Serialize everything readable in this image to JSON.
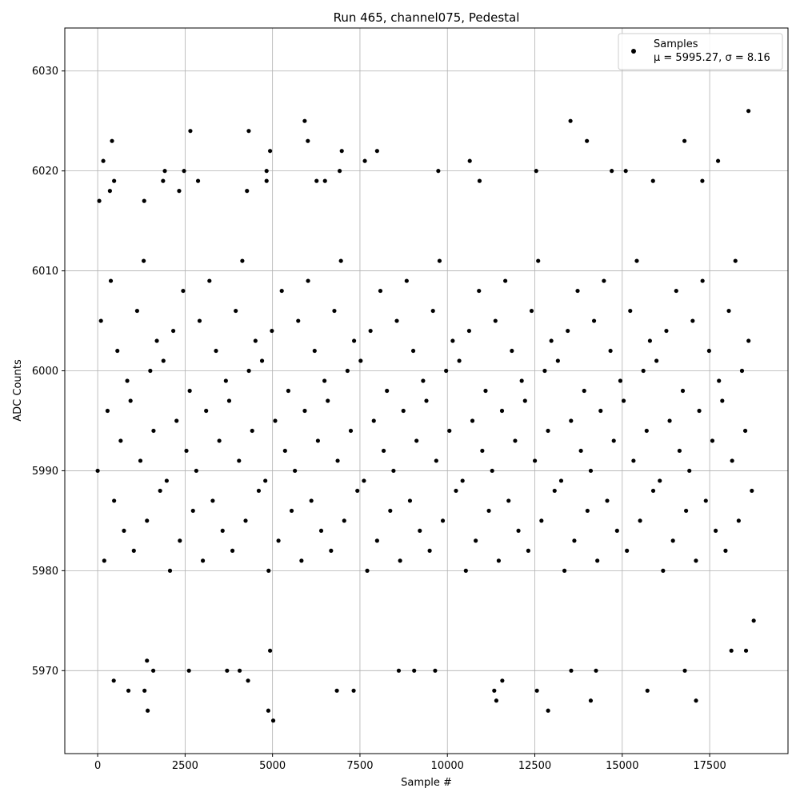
{
  "chart_data": {
    "type": "scatter",
    "title": "Run 465, channel075, Pedestal",
    "x_label": "Sample #",
    "y_label": "ADC Counts",
    "xlim": [
      -940,
      19740
    ],
    "ylim": [
      5961.7,
      6034.3
    ],
    "xticks": [
      0,
      2500,
      5000,
      7500,
      10000,
      12500,
      15000,
      17500
    ],
    "yticks": [
      5970,
      5980,
      5990,
      6000,
      6010,
      6020,
      6030
    ],
    "grid": true,
    "legend_position": "upper right",
    "series": [
      {
        "name": "Samples",
        "legend_note": "μ = 5995.27, σ = 8.16",
        "color": "#000000",
        "x": [
          0,
          94,
          188,
          282,
          376,
          470,
          564,
          658,
          752,
          846,
          940,
          1034,
          1128,
          1222,
          1316,
          1410,
          1504,
          1598,
          1692,
          1786,
          1880,
          1974,
          2068,
          2162,
          2256,
          2350,
          2444,
          2538,
          2632,
          2726,
          2820,
          2914,
          3008,
          3102,
          3196,
          3290,
          3384,
          3478,
          3572,
          3666,
          3760,
          3854,
          3948,
          4042,
          4136,
          4230,
          4324,
          4418,
          4512,
          4606,
          4700,
          4794,
          4888,
          4982,
          5076,
          5170,
          5264,
          5358,
          5452,
          5546,
          5640,
          5734,
          5828,
          5922,
          6016,
          6110,
          6204,
          6298,
          6392,
          6486,
          6580,
          6674,
          6768,
          6862,
          6956,
          7050,
          7144,
          7238,
          7332,
          7426,
          7520,
          7614,
          7708,
          7802,
          7896,
          7990,
          8084,
          8178,
          8272,
          8366,
          8460,
          8554,
          8648,
          8742,
          8836,
          8930,
          9024,
          9118,
          9212,
          9306,
          9400,
          9494,
          9588,
          9682,
          9776,
          9870,
          9964,
          10058,
          10152,
          10246,
          10340,
          10434,
          10528,
          10622,
          10716,
          10810,
          10904,
          10998,
          11092,
          11186,
          11280,
          11374,
          11468,
          11562,
          11656,
          11750,
          11844,
          11938,
          12032,
          12126,
          12220,
          12314,
          12408,
          12502,
          12596,
          12690,
          12784,
          12878,
          12972,
          13066,
          13160,
          13254,
          13348,
          13442,
          13536,
          13630,
          13724,
          13818,
          13912,
          14006,
          14100,
          14194,
          14288,
          14382,
          14476,
          14570,
          14664,
          14758,
          14852,
          14946,
          15040,
          15134,
          15228,
          15322,
          15416,
          15510,
          15604,
          15698,
          15792,
          15886,
          15980,
          16074,
          16168,
          16262,
          16356,
          16450,
          16544,
          16638,
          16732,
          16826,
          16920,
          17014,
          17108,
          17202,
          17296,
          17390,
          17484,
          17578,
          17672,
          17766,
          17860,
          17954,
          18048,
          18142,
          18236,
          18330,
          18424,
          18518,
          18612,
          18706,
          45,
          160,
          410,
          470,
          350,
          1330,
          1870,
          1920,
          2470,
          2330,
          2650,
          2870,
          4320,
          4270,
          4830,
          4830,
          4930,
          5920,
          6010,
          6260,
          6500,
          6920,
          6980,
          7640,
          7990,
          9740,
          10640,
          10920,
          12540,
          13520,
          13990,
          14700,
          15100,
          15880,
          16780,
          17290,
          17740,
          18610,
          460,
          880,
          1340,
          1430,
          1410,
          1590,
          2610,
          3700,
          4060,
          4300,
          4880,
          5020,
          4930,
          6840,
          7320,
          8610,
          9050,
          9650,
          11340,
          11400,
          11570,
          12560,
          12880,
          14100,
          14250,
          13540,
          15720,
          16790,
          17110,
          18120,
          18540,
          18760
        ],
        "values": [
          5990,
          6005,
          5981,
          5996,
          6009,
          5987,
          6002,
          5993,
          5984,
          5999,
          5997,
          5982,
          6006,
          5991,
          6011,
          5985,
          6000,
          5994,
          6003,
          5988,
          6001,
          5989,
          5980,
          6004,
          5995,
          5983,
          6008,
          5992,
          5998,
          5986,
          5990,
          6005,
          5981,
          5996,
          6009,
          5987,
          6002,
          5993,
          5984,
          5999,
          5997,
          5982,
          6006,
          5991,
          6011,
          5985,
          6000,
          5994,
          6003,
          5988,
          6001,
          5989,
          5980,
          6004,
          5995,
          5983,
          6008,
          5992,
          5998,
          5986,
          5990,
          6005,
          5981,
          5996,
          6009,
          5987,
          6002,
          5993,
          5984,
          5999,
          5997,
          5982,
          6006,
          5991,
          6011,
          5985,
          6000,
          5994,
          6003,
          5988,
          6001,
          5989,
          5980,
          6004,
          5995,
          5983,
          6008,
          5992,
          5998,
          5986,
          5990,
          6005,
          5981,
          5996,
          6009,
          5987,
          6002,
          5993,
          5984,
          5999,
          5997,
          5982,
          6006,
          5991,
          6011,
          5985,
          6000,
          5994,
          6003,
          5988,
          6001,
          5989,
          5980,
          6004,
          5995,
          5983,
          6008,
          5992,
          5998,
          5986,
          5990,
          6005,
          5981,
          5996,
          6009,
          5987,
          6002,
          5993,
          5984,
          5999,
          5997,
          5982,
          6006,
          5991,
          6011,
          5985,
          6000,
          5994,
          6003,
          5988,
          6001,
          5989,
          5980,
          6004,
          5995,
          5983,
          6008,
          5992,
          5998,
          5986,
          5990,
          6005,
          5981,
          5996,
          6009,
          5987,
          6002,
          5993,
          5984,
          5999,
          5997,
          5982,
          6006,
          5991,
          6011,
          5985,
          6000,
          5994,
          6003,
          5988,
          6001,
          5989,
          5980,
          6004,
          5995,
          5983,
          6008,
          5992,
          5998,
          5986,
          5990,
          6005,
          5981,
          5996,
          6009,
          5987,
          6002,
          5993,
          5984,
          5999,
          5997,
          5982,
          6006,
          5991,
          6011,
          5985,
          6000,
          5994,
          6003,
          5988,
          6017,
          6021,
          6023,
          6019,
          6018,
          6017,
          6019,
          6020,
          6020,
          6018,
          6024,
          6019,
          6024,
          6018,
          6020,
          6019,
          6022,
          6025,
          6023,
          6019,
          6019,
          6020,
          6022,
          6021,
          6022,
          6020,
          6021,
          6019,
          6020,
          6025,
          6023,
          6020,
          6020,
          6019,
          6023,
          6019,
          6021,
          6026,
          5969,
          5968,
          5968,
          5966,
          5971,
          5970,
          5970,
          5970,
          5970,
          5969,
          5966,
          5965,
          5972,
          5968,
          5968,
          5970,
          5970,
          5970,
          5968,
          5967,
          5969,
          5968,
          5966,
          5967,
          5970,
          5970,
          5968,
          5970,
          5967,
          5972,
          5972,
          5975
        ]
      }
    ]
  }
}
